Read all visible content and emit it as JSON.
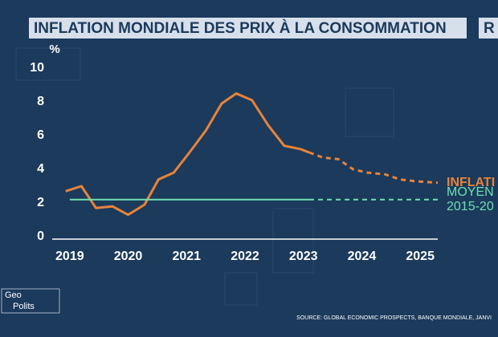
{
  "chart_data": {
    "type": "line",
    "title": "INFLATION MONDIALE DES PRIX À LA CONSOMMATION",
    "corner_text": "R",
    "y_unit": "%",
    "source": "SOURCE: GLOBAL ECONOMIC PROSPECTS, BANQUE MONDIALE, JANVI",
    "logo": [
      "Geo",
      "Polits"
    ],
    "xlim": [
      2018.7,
      2025.3
    ],
    "xticks": [
      2019,
      2020,
      2021,
      2022,
      2023,
      2024,
      2025
    ],
    "ylim": [
      0,
      10
    ],
    "yticks": [
      0,
      2,
      4,
      6,
      8,
      10
    ],
    "series": [
      {
        "name": [
          "INFLATI"
        ],
        "color": "#e8833a",
        "width": 3,
        "dashed_from_index": 16,
        "x": [
          2018.93,
          2019.2,
          2019.45,
          2019.73,
          2020.0,
          2020.28,
          2020.52,
          2020.78,
          2021.05,
          2021.33,
          2021.6,
          2021.85,
          2022.12,
          2022.4,
          2022.67,
          2022.95,
          2023.1,
          2023.33,
          2023.6,
          2023.85,
          2024.1,
          2024.4,
          2024.65,
          2024.9,
          2025.3
        ],
        "values": [
          2.7,
          3.0,
          1.7,
          1.8,
          1.3,
          1.9,
          3.4,
          3.8,
          5.0,
          6.3,
          7.9,
          8.5,
          8.1,
          6.6,
          5.4,
          5.2,
          5.0,
          4.7,
          4.6,
          4.0,
          3.8,
          3.7,
          3.4,
          3.3,
          3.2
        ]
      },
      {
        "name": [
          "MOYEN",
          "2015-20"
        ],
        "color": "#6ee0b0",
        "width": 2,
        "dashed_from_index": 1,
        "x": [
          2019,
          2023.1,
          2025.3
        ],
        "values": [
          2.2,
          2.2,
          2.2
        ]
      }
    ]
  }
}
